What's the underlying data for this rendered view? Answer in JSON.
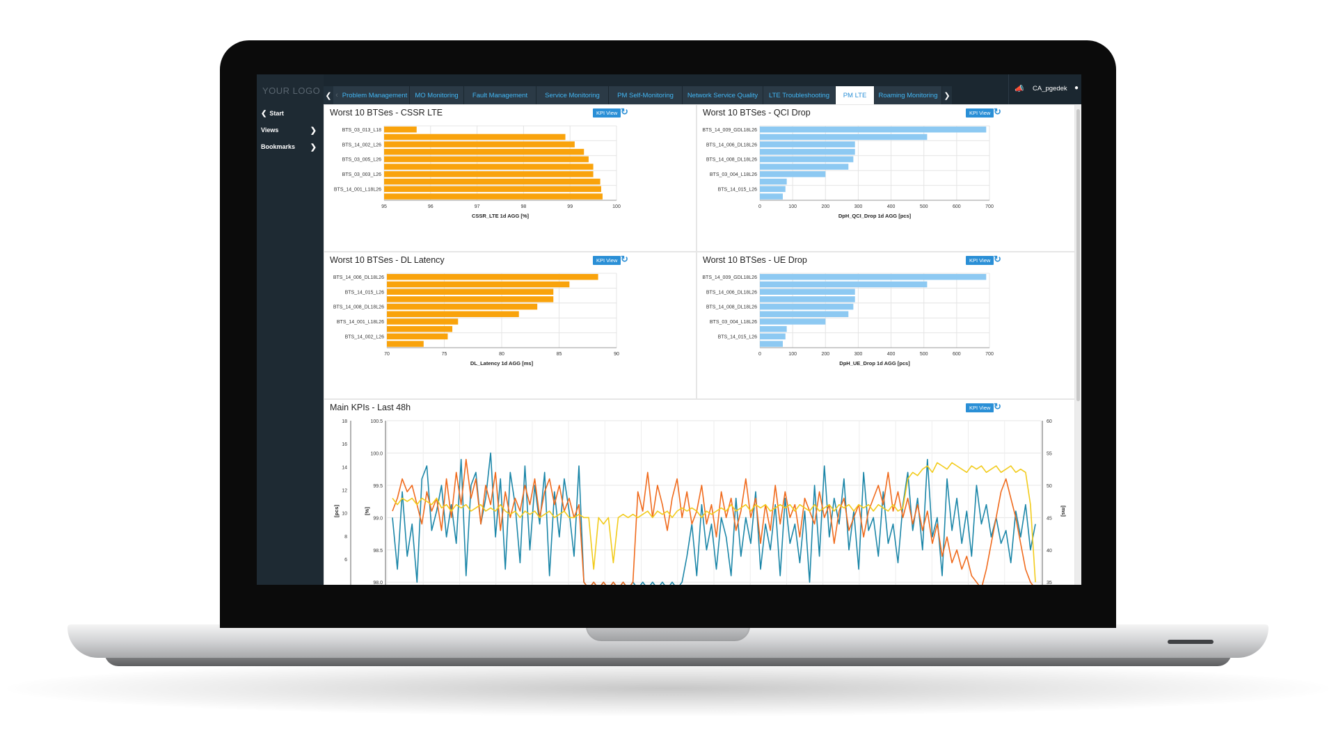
{
  "sidebar": {
    "logo": "YOUR LOGO",
    "items": [
      {
        "label": "Start",
        "icon": "chevron-left-icon"
      },
      {
        "label": "Views",
        "icon": "chevron-right-icon"
      },
      {
        "label": "Bookmarks",
        "icon": "chevron-right-icon"
      }
    ]
  },
  "nav": {
    "tabs": [
      "Problem Management",
      "MO Monitoring",
      "Fault Management",
      "Service Monitoring",
      "PM Self-Monitoring",
      "Network Service Quality",
      "LTE Troubleshooting",
      "PM LTE",
      "Roaming Monitoring"
    ],
    "active_tab": "PM LTE",
    "user": "CA_pgedek"
  },
  "kpi_button_label": "KPI View",
  "panels": {
    "cssr": {
      "title": "Worst 10 BTSes - CSSR LTE"
    },
    "qci": {
      "title": "Worst 10 BTSes - QCI Drop"
    },
    "dl": {
      "title": "Worst 10 BTSes - DL Latency"
    },
    "ue": {
      "title": "Worst 10 BTSes - UE Drop"
    },
    "main": {
      "title": "Main KPIs - Last 48h"
    }
  },
  "colors": {
    "orange": "#f9a30c",
    "blue": "#8dc9f2",
    "teal": "#1b86a8",
    "red_orange": "#f06a1c",
    "yellow": "#f2cb1b",
    "accent": "#2a8fd6"
  },
  "chart_data": [
    {
      "id": "cssr",
      "type": "bar",
      "orientation": "horizontal",
      "category_labels": [
        "BTS_03_013_L18",
        "BTS_14_002_L26",
        "BTS_03_005_L26",
        "BTS_03_003_L26",
        "BTS_14_001_L18L26"
      ],
      "labeled_bar_index": [
        0,
        2,
        4,
        6,
        8
      ],
      "values": [
        95.7,
        98.9,
        99.1,
        99.3,
        99.4,
        99.5,
        99.5,
        99.65,
        99.67,
        99.7
      ],
      "xlabel": "CSSR_LTE 1d AGG [%]",
      "xlim": [
        95,
        100
      ],
      "ticks": [
        95,
        96,
        97,
        98,
        99,
        100
      ]
    },
    {
      "id": "qci",
      "type": "bar",
      "orientation": "horizontal",
      "category_labels": [
        "BTS_14_009_GDL18L26",
        "BTS_14_006_DL18L26",
        "BTS_14_008_DL18L26",
        "BTS_03_004_L18L26",
        "BTS_14_015_L26"
      ],
      "labeled_bar_index": [
        0,
        2,
        4,
        6,
        8
      ],
      "values": [
        690,
        510,
        290,
        290,
        285,
        270,
        200,
        82,
        78,
        70
      ],
      "xlabel": "DpH_QCI_Drop 1d AGG [pcs]",
      "xlim": [
        0,
        700
      ],
      "ticks": [
        0,
        100,
        200,
        300,
        400,
        500,
        600,
        700
      ]
    },
    {
      "id": "dl",
      "type": "bar",
      "orientation": "horizontal",
      "category_labels": [
        "BTS_14_006_DL18L26",
        "BTS_14_015_L26",
        "BTS_14_008_DL18L26",
        "BTS_14_001_L18L26",
        "BTS_14_002_L26"
      ],
      "labeled_bar_index": [
        0,
        2,
        4,
        6,
        8
      ],
      "values": [
        88.4,
        85.9,
        84.5,
        84.5,
        83.1,
        81.5,
        76.2,
        75.7,
        75.3,
        73.2
      ],
      "xlabel": "DL_Latency 1d AGG [ms]",
      "xlim": [
        70,
        90
      ],
      "ticks": [
        70,
        75,
        80,
        85,
        90
      ]
    },
    {
      "id": "ue",
      "type": "bar",
      "orientation": "horizontal",
      "category_labels": [
        "BTS_14_009_GDL18L26",
        "BTS_14_006_DL18L26",
        "BTS_14_008_DL18L26",
        "BTS_03_004_L18L26",
        "BTS_14_015_L26"
      ],
      "labeled_bar_index": [
        0,
        2,
        4,
        6,
        8
      ],
      "values": [
        690,
        510,
        290,
        290,
        285,
        270,
        200,
        82,
        78,
        70
      ],
      "xlabel": "DpH_UE_Drop 1d AGG [pcs]",
      "xlim": [
        0,
        700
      ],
      "ticks": [
        0,
        100,
        200,
        300,
        400,
        500,
        600,
        700
      ]
    },
    {
      "id": "main",
      "type": "line",
      "y_axes": [
        {
          "label": "[pcs]",
          "ticks": [
            6,
            8,
            10,
            12,
            14,
            16,
            18
          ],
          "range": [
            4,
            18
          ]
        },
        {
          "label": "[%]",
          "ticks": [
            "98.0",
            "98.5",
            "99.0",
            "99.5",
            "100.0",
            "100.5"
          ],
          "range": [
            98,
            100.5
          ]
        },
        {
          "label": "[ms]",
          "ticks": [
            35,
            40,
            45,
            50,
            55,
            60
          ],
          "range": [
            35,
            60
          ],
          "side": "right"
        }
      ],
      "series": [
        {
          "color": "teal",
          "axis": 1,
          "values": [
            99.0,
            98.2,
            99.4,
            98.4,
            98.9,
            98.0,
            99.6,
            99.8,
            98.8,
            99.1,
            99.5,
            98.7,
            99.2,
            98.6,
            99.9,
            98.1,
            99.5,
            99.7,
            98.9,
            99.3,
            100.0,
            98.7,
            99.6,
            98.2,
            99.7,
            99.2,
            98.3,
            99.8,
            98.5,
            99.5,
            98.9,
            99.7,
            98.1,
            99.4,
            98.7,
            99.6,
            99.1,
            98.4,
            99.8,
            98.0,
            97.9,
            98.0,
            97.9,
            98.0,
            97.9,
            98.0,
            97.9,
            98.0,
            97.9,
            98.0,
            97.9,
            98.0,
            97.9,
            98.0,
            97.9,
            98.0,
            97.9,
            98.0,
            97.9,
            98.0,
            98.4,
            98.9,
            98.1,
            99.2,
            98.5,
            98.9,
            98.2,
            99.0,
            98.7,
            98.1,
            99.3,
            98.4,
            99.0,
            98.6,
            99.4,
            98.2,
            98.9,
            98.5,
            99.2,
            98.1,
            99.3,
            98.6,
            98.9,
            98.3,
            99.1,
            98.0,
            99.5,
            98.4,
            99.8,
            98.7,
            99.3,
            98.9,
            99.6,
            98.5,
            99.1,
            98.2,
            99.7,
            98.8,
            99.0,
            98.4,
            99.4,
            98.6,
            98.9,
            98.3,
            99.2,
            99.7,
            98.8,
            99.3,
            98.5,
            99.9,
            98.7,
            99.0,
            98.1,
            99.6,
            98.8,
            99.3,
            98.6,
            99.1,
            98.4,
            99.5,
            98.9,
            99.2,
            98.7,
            99.0,
            98.6,
            98.8,
            98.3,
            99.1,
            98.7,
            99.2,
            98.5,
            98.9
          ]
        },
        {
          "color": "red_orange",
          "axis": 1,
          "values": [
            99.1,
            99.3,
            99.6,
            99.4,
            99.5,
            99.2,
            98.9,
            99.4,
            99.1,
            99.3,
            98.8,
            99.6,
            99.0,
            99.7,
            99.2,
            99.9,
            99.3,
            99.6,
            98.9,
            99.5,
            99.2,
            99.7,
            98.8,
            99.4,
            99.0,
            99.3,
            99.1,
            99.5,
            99.2,
            99.6,
            99.0,
            99.4,
            99.6,
            99.2,
            99.5,
            99.1,
            99.3,
            99.0,
            99.2,
            98.0,
            97.9,
            98.0,
            97.9,
            98.0,
            97.9,
            98.0,
            97.9,
            98.0,
            97.9,
            98.0,
            99.4,
            99.1,
            99.7,
            99.0,
            99.5,
            99.2,
            98.8,
            99.3,
            99.6,
            99.0,
            99.4,
            98.9,
            99.1,
            99.5,
            98.9,
            99.2,
            98.7,
            99.4,
            99.0,
            99.3,
            98.8,
            99.1,
            99.6,
            99.0,
            99.3,
            98.6,
            99.2,
            98.8,
            99.5,
            98.9,
            99.4,
            99.0,
            99.2,
            98.7,
            99.3,
            99.1,
            98.9,
            99.4,
            99.0,
            99.2,
            98.6,
            99.1,
            99.3,
            98.8,
            99.0,
            99.2,
            98.7,
            99.1,
            99.3,
            99.5,
            99.2,
            99.7,
            99.1,
            99.4,
            99.0,
            99.3,
            98.9,
            99.2,
            98.8,
            99.1,
            98.6,
            98.9,
            98.4,
            98.7,
            98.3,
            98.5,
            98.2,
            98.4,
            98.1,
            98.0,
            97.9,
            98.2,
            98.6,
            99.0,
            99.4,
            99.6,
            99.3,
            99.0,
            98.6,
            98.2,
            98.0,
            97.9
          ]
        },
        {
          "color": "yellow",
          "axis": 1,
          "values": [
            99.3,
            99.2,
            99.3,
            99.25,
            99.3,
            99.2,
            99.3,
            99.25,
            99.2,
            99.3,
            99.15,
            99.2,
            99.1,
            99.2,
            99.15,
            99.2,
            99.1,
            99.15,
            99.2,
            99.1,
            99.15,
            99.1,
            99.2,
            99.1,
            99.05,
            99.1,
            99.0,
            99.1,
            99.05,
            99.1,
            99.0,
            99.05,
            99.1,
            99.0,
            99.05,
            99.1,
            99.0,
            99.0,
            99.05,
            99.0,
            99.0,
            98.2,
            99.0,
            98.9,
            99.0,
            98.3,
            99.0,
            99.05,
            99.0,
            99.05,
            99.0,
            99.05,
            99.1,
            99.0,
            99.1,
            99.05,
            99.1,
            99.0,
            99.1,
            99.15,
            99.1,
            99.15,
            99.1,
            99.0,
            99.1,
            99.05,
            99.1,
            99.15,
            99.1,
            99.2,
            99.1,
            99.15,
            99.2,
            99.1,
            99.2,
            99.15,
            99.2,
            99.1,
            99.15,
            99.2,
            99.15,
            99.2,
            99.1,
            99.2,
            99.15,
            99.1,
            99.2,
            99.1,
            99.15,
            99.2,
            99.1,
            99.2,
            99.15,
            99.2,
            99.1,
            99.2,
            99.15,
            99.2,
            99.1,
            99.2,
            99.15,
            99.1,
            99.2,
            99.1,
            99.15,
            99.6,
            99.7,
            99.65,
            99.75,
            99.8,
            99.7,
            99.85,
            99.8,
            99.75,
            99.85,
            99.8,
            99.75,
            99.7,
            99.8,
            99.75,
            99.8,
            99.7,
            99.75,
            99.8,
            99.7,
            99.75,
            99.8,
            99.7,
            99.75,
            99.7,
            99.2,
            98.0
          ]
        }
      ]
    }
  ]
}
